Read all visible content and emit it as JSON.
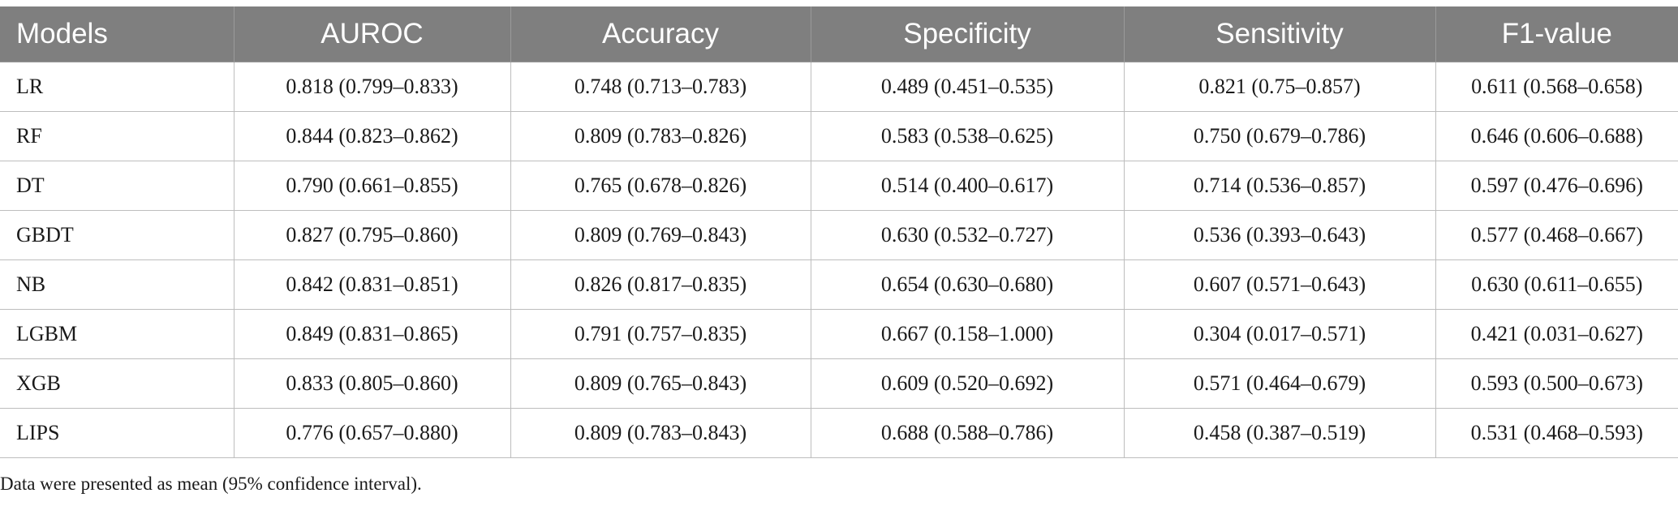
{
  "table": {
    "headers": [
      "Models",
      "AUROC",
      "Accuracy",
      "Specificity",
      "Sensitivity",
      "F1-value"
    ],
    "rows": [
      [
        "LR",
        "0.818 (0.799–0.833)",
        "0.748 (0.713–0.783)",
        "0.489 (0.451–0.535)",
        "0.821 (0.75–0.857)",
        "0.611 (0.568–0.658)"
      ],
      [
        "RF",
        "0.844 (0.823–0.862)",
        "0.809 (0.783–0.826)",
        "0.583 (0.538–0.625)",
        "0.750 (0.679–0.786)",
        "0.646 (0.606–0.688)"
      ],
      [
        "DT",
        "0.790 (0.661–0.855)",
        "0.765 (0.678–0.826)",
        "0.514 (0.400–0.617)",
        "0.714 (0.536–0.857)",
        "0.597 (0.476–0.696)"
      ],
      [
        "GBDT",
        "0.827 (0.795–0.860)",
        "0.809 (0.769–0.843)",
        "0.630 (0.532–0.727)",
        "0.536 (0.393–0.643)",
        "0.577 (0.468–0.667)"
      ],
      [
        "NB",
        "0.842 (0.831–0.851)",
        "0.826 (0.817–0.835)",
        "0.654 (0.630–0.680)",
        "0.607 (0.571–0.643)",
        "0.630 (0.611–0.655)"
      ],
      [
        "LGBM",
        "0.849 (0.831–0.865)",
        "0.791 (0.757–0.835)",
        "0.667 (0.158–1.000)",
        "0.304 (0.017–0.571)",
        "0.421 (0.031–0.627)"
      ],
      [
        "XGB",
        "0.833 (0.805–0.860)",
        "0.809 (0.765–0.843)",
        "0.609 (0.520–0.692)",
        "0.571 (0.464–0.679)",
        "0.593 (0.500–0.673)"
      ],
      [
        "LIPS",
        "0.776 (0.657–0.880)",
        "0.809 (0.783–0.843)",
        "0.688 (0.588–0.786)",
        "0.458 (0.387–0.519)",
        "0.531 (0.468–0.593)"
      ]
    ]
  },
  "footnote": "Data were presented as mean (95% confidence interval)."
}
